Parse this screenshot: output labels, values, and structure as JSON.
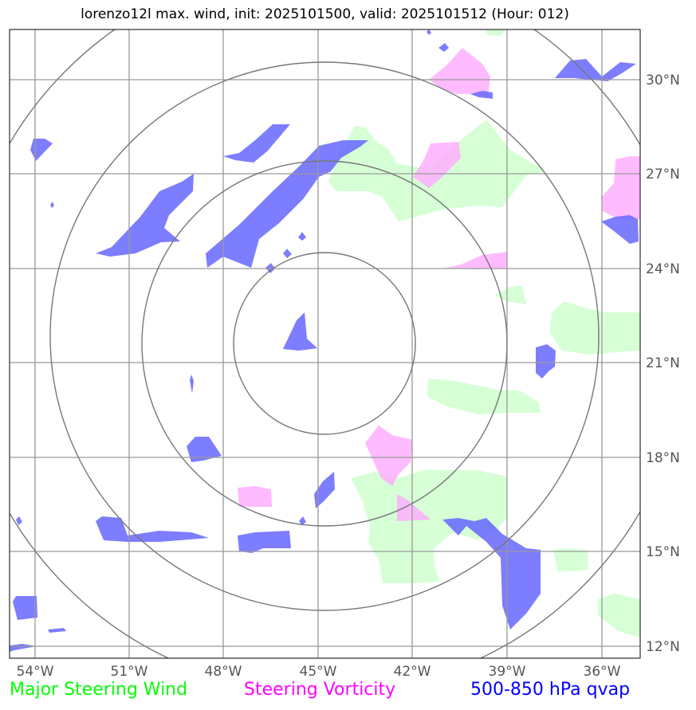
{
  "title": "lorenzo12l max. wind, init: 2025101500, valid: 2025101512 (Hour: 012)",
  "lat_labels": [
    "30°N",
    "27°N",
    "24°N",
    "21°N",
    "18°N",
    "15°N",
    "12°N"
  ],
  "lon_labels": [
    "54°W",
    "51°W",
    "48°W",
    "45°W",
    "42°W",
    "39°W",
    "36°W"
  ],
  "legend": {
    "wind": "Major Steering Wind",
    "vorticity": "Steering Vorticity",
    "qvap": "500-850 hPa qvap"
  },
  "colors": {
    "wind": "#00ff00",
    "vorticity": "#ff00ff",
    "qvap": "#0000ff",
    "wind_fill": "#ccffcc",
    "vorticity_fill": "#ffaaff",
    "qvap_fill": "#6666ff"
  }
}
